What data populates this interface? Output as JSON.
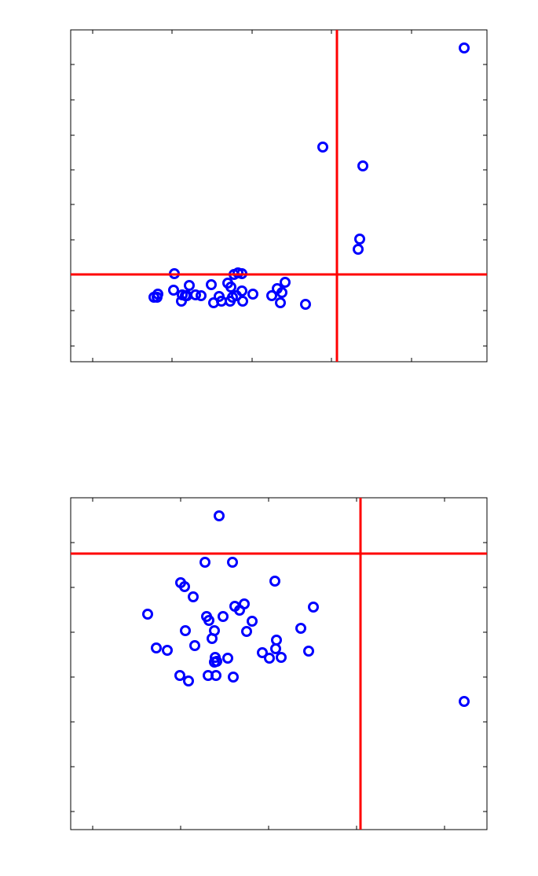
{
  "chart_data": [
    {
      "type": "scatter",
      "color": "#0000ff",
      "xlim": [
        0,
        530
      ],
      "ylim": [
        0,
        422
      ],
      "xticks": [
        28,
        129,
        231,
        332,
        434
      ],
      "yticks": [
        20,
        65,
        110,
        155,
        200,
        244,
        288,
        333,
        378
      ],
      "vline": 339,
      "hline": 111,
      "line_color": "#ff0000",
      "x": [
        501,
        321,
        372,
        368,
        366,
        132,
        208,
        213,
        218,
        200,
        204,
        179,
        151,
        131,
        111,
        106,
        110,
        142,
        146,
        141,
        159,
        166,
        189,
        182,
        192,
        203,
        206,
        211,
        218,
        219,
        232,
        256,
        263,
        269,
        273,
        267,
        299,
        148
      ],
      "y": [
        399,
        273,
        249,
        156,
        143,
        112,
        111,
        113,
        112,
        100,
        95,
        98,
        97,
        91,
        86,
        82,
        82,
        85,
        84,
        77,
        85,
        84,
        83,
        75,
        77,
        77,
        82,
        84,
        90,
        77,
        86,
        84,
        93,
        88,
        101,
        75,
        73,
        84
      ]
    },
    {
      "type": "scatter",
      "color": "#0000ff",
      "xlim": [
        0,
        530
      ],
      "ylim": [
        0,
        422
      ],
      "xticks": [
        28,
        140,
        252,
        364,
        476
      ],
      "yticks": [
        23,
        80,
        137,
        194,
        251,
        308,
        365
      ],
      "vline": 369,
      "hline": 351,
      "line_color": "#ff0000",
      "x": [
        189,
        171,
        206,
        140,
        145,
        260,
        156,
        98,
        173,
        176,
        194,
        209,
        215,
        221,
        231,
        309,
        146,
        183,
        180,
        224,
        293,
        158,
        109,
        123,
        262,
        261,
        303,
        244,
        253,
        268,
        184,
        186,
        183,
        200,
        139,
        150,
        175,
        185,
        207,
        501
      ],
      "y": [
        399,
        340,
        340,
        314,
        309,
        316,
        296,
        274,
        271,
        266,
        271,
        284,
        279,
        287,
        265,
        283,
        253,
        253,
        243,
        252,
        256,
        234,
        231,
        228,
        241,
        230,
        227,
        225,
        218,
        219,
        219,
        214,
        213,
        218,
        196,
        189,
        196,
        196,
        194,
        163
      ]
    }
  ]
}
